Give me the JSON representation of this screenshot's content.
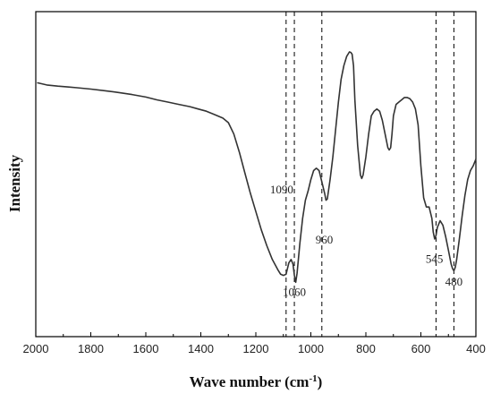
{
  "chart_data": {
    "type": "line",
    "title": "",
    "xlabel": "Wave number (cm",
    "xlabel_sup": "-1",
    "xlabel_close": ")",
    "ylabel": "Intensity",
    "xlim": [
      2000,
      400
    ],
    "x_reversed": true,
    "y_ticks_shown": false,
    "grid": false,
    "xticks": [
      2000,
      1800,
      1600,
      1400,
      1200,
      1000,
      800,
      600,
      400
    ],
    "xtick_labels": [
      "2000",
      "1800",
      "1600",
      "1400",
      "1200",
      "1000",
      "800",
      "600",
      "400"
    ],
    "line_color": "#333333",
    "series": [
      {
        "x": [
          1995,
          1960,
          1920,
          1880,
          1850,
          1800,
          1750,
          1700,
          1650,
          1600,
          1560,
          1520,
          1480,
          1440,
          1410,
          1380,
          1350,
          1320,
          1300,
          1280,
          1260,
          1240,
          1220,
          1200,
          1180,
          1160,
          1140,
          1120,
          1110,
          1100,
          1090,
          1080,
          1072,
          1065,
          1060,
          1055,
          1050,
          1040,
          1030,
          1020,
          1010,
          1000,
          990,
          980,
          970,
          960,
          950,
          945,
          940,
          930,
          920,
          910,
          900,
          890,
          880,
          870,
          860,
          855,
          850,
          845,
          840,
          830,
          820,
          815,
          810,
          800,
          790,
          780,
          770,
          760,
          750,
          740,
          730,
          720,
          715,
          710,
          705,
          700,
          690,
          680,
          670,
          660,
          650,
          640,
          630,
          620,
          610,
          600,
          590,
          580,
          570,
          560,
          555,
          550,
          545,
          540,
          530,
          520,
          510,
          500,
          490,
          485,
          480,
          475,
          470,
          460,
          450,
          440,
          430,
          420,
          410,
          400
        ],
        "y": [
          0.925,
          0.915,
          0.91,
          0.906,
          0.903,
          0.897,
          0.89,
          0.882,
          0.873,
          0.862,
          0.85,
          0.84,
          0.83,
          0.82,
          0.81,
          0.8,
          0.785,
          0.77,
          0.75,
          0.7,
          0.62,
          0.53,
          0.44,
          0.36,
          0.28,
          0.21,
          0.15,
          0.105,
          0.085,
          0.08,
          0.085,
          0.135,
          0.15,
          0.13,
          0.08,
          0.05,
          0.09,
          0.22,
          0.33,
          0.41,
          0.45,
          0.5,
          0.54,
          0.55,
          0.54,
          0.49,
          0.44,
          0.41,
          0.415,
          0.5,
          0.6,
          0.72,
          0.84,
          0.94,
          1.0,
          1.04,
          1.06,
          1.058,
          1.05,
          1.0,
          0.85,
          0.65,
          0.52,
          0.505,
          0.52,
          0.6,
          0.7,
          0.78,
          0.8,
          0.81,
          0.8,
          0.76,
          0.7,
          0.64,
          0.63,
          0.64,
          0.7,
          0.78,
          0.83,
          0.84,
          0.85,
          0.86,
          0.86,
          0.855,
          0.84,
          0.81,
          0.74,
          0.56,
          0.42,
          0.38,
          0.38,
          0.33,
          0.27,
          0.24,
          0.255,
          0.29,
          0.32,
          0.3,
          0.25,
          0.19,
          0.13,
          0.11,
          0.1,
          0.115,
          0.15,
          0.24,
          0.34,
          0.43,
          0.5,
          0.54,
          0.56,
          0.59
        ]
      }
    ],
    "reference_lines": [
      1090,
      1060,
      960,
      545,
      480
    ],
    "annotations": [
      {
        "text": "1090",
        "x": 1090,
        "y": 0.44,
        "anchor": "end"
      },
      {
        "text": "1060",
        "x": 1060,
        "y": -0.01,
        "anchor": "middle"
      },
      {
        "text": "960",
        "x": 960,
        "y": 0.22,
        "anchor": "start"
      },
      {
        "text": "545",
        "x": 545,
        "y": 0.135,
        "anchor": "end"
      },
      {
        "text": "480",
        "x": 480,
        "y": 0.035,
        "anchor": "middle"
      }
    ]
  }
}
